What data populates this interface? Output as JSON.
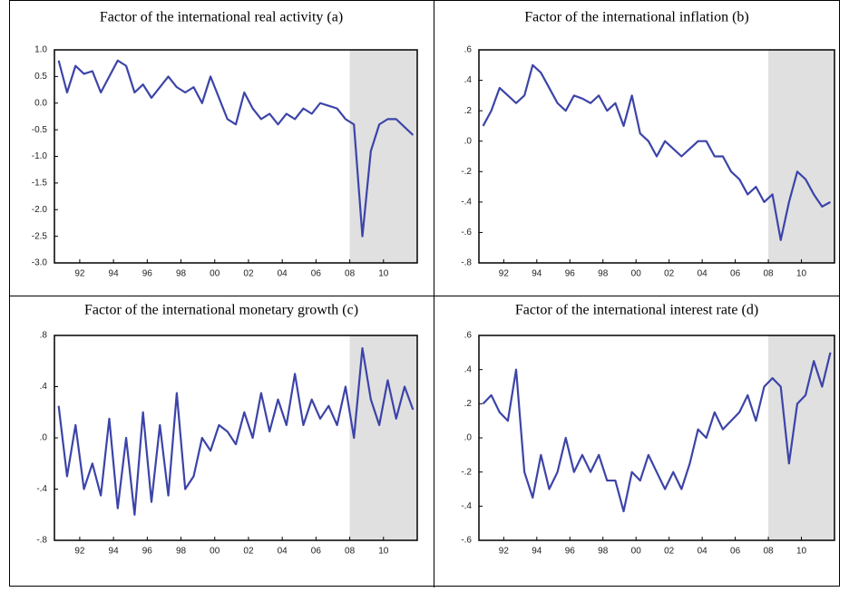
{
  "chart_data": [
    {
      "type": "line",
      "title": "Factor of the international real activity (a)",
      "x": [
        1990.75,
        1991.25,
        1991.75,
        1992.25,
        1992.75,
        1993.25,
        1993.75,
        1994.25,
        1994.75,
        1995.25,
        1995.75,
        1996.25,
        1996.75,
        1997.25,
        1997.75,
        1998.25,
        1998.75,
        1999.25,
        1999.75,
        2000.25,
        2000.75,
        2001.25,
        2001.75,
        2002.25,
        2002.75,
        2003.25,
        2003.75,
        2004.25,
        2004.75,
        2005.25,
        2005.75,
        2006.25,
        2006.75,
        2007.25,
        2007.75,
        2008.25,
        2008.75,
        2009.25,
        2009.75,
        2010.25,
        2010.75,
        2011.25,
        2011.75
      ],
      "values": [
        0.8,
        0.2,
        0.7,
        0.55,
        0.6,
        0.2,
        0.5,
        0.8,
        0.7,
        0.2,
        0.35,
        0.1,
        0.3,
        0.5,
        0.3,
        0.2,
        0.3,
        0.0,
        0.5,
        0.1,
        -0.3,
        -0.4,
        0.2,
        -0.1,
        -0.3,
        -0.2,
        -0.4,
        -0.2,
        -0.3,
        -0.1,
        -0.2,
        0.0,
        -0.05,
        -0.1,
        -0.3,
        -0.4,
        -2.5,
        -0.9,
        -0.4,
        -0.3,
        -0.3,
        -0.45,
        -0.6
      ],
      "color": "#3c44a8",
      "shade": [
        2008,
        2012
      ],
      "shade_color": "#e0e0e0",
      "xlim": [
        1990.5,
        2012
      ],
      "xticks": [
        {
          "value": 1992,
          "label": "92"
        },
        {
          "value": 1994,
          "label": "94"
        },
        {
          "value": 1996,
          "label": "96"
        },
        {
          "value": 1998,
          "label": "98"
        },
        {
          "value": 2000,
          "label": "00"
        },
        {
          "value": 2002,
          "label": "02"
        },
        {
          "value": 2004,
          "label": "04"
        },
        {
          "value": 2006,
          "label": "06"
        },
        {
          "value": 2008,
          "label": "08"
        },
        {
          "value": 2010,
          "label": "10"
        }
      ],
      "ylim": [
        -3,
        1
      ],
      "yticks": [
        {
          "value": 1,
          "label": "1.0"
        },
        0.5,
        {
          "value": 0,
          "label": "0.0"
        },
        -0.5,
        {
          "value": -1,
          "label": "-1.0"
        },
        -1.5,
        {
          "value": -2,
          "label": "-2.0"
        },
        -2.5,
        {
          "value": -3,
          "label": "-3.0"
        }
      ]
    },
    {
      "type": "line",
      "title": "Factor of the international inflation (b)",
      "x": [
        1990.75,
        1991.25,
        1991.75,
        1992.25,
        1992.75,
        1993.25,
        1993.75,
        1994.25,
        1994.75,
        1995.25,
        1995.75,
        1996.25,
        1996.75,
        1997.25,
        1997.75,
        1998.25,
        1998.75,
        1999.25,
        1999.75,
        2000.25,
        2000.75,
        2001.25,
        2001.75,
        2002.25,
        2002.75,
        2003.25,
        2003.75,
        2004.25,
        2004.75,
        2005.25,
        2005.75,
        2006.25,
        2006.75,
        2007.25,
        2007.75,
        2008.25,
        2008.75,
        2009.25,
        2009.75,
        2010.25,
        2010.75,
        2011.25,
        2011.75
      ],
      "values": [
        0.1,
        0.2,
        0.35,
        0.3,
        0.25,
        0.3,
        0.5,
        0.45,
        0.35,
        0.25,
        0.2,
        0.3,
        0.28,
        0.25,
        0.3,
        0.2,
        0.25,
        0.1,
        0.3,
        0.05,
        0.0,
        -0.1,
        0.0,
        -0.05,
        -0.1,
        -0.05,
        0.0,
        0.0,
        -0.1,
        -0.1,
        -0.2,
        -0.25,
        -0.35,
        -0.3,
        -0.4,
        -0.35,
        -0.65,
        -0.4,
        -0.2,
        -0.25,
        -0.35,
        -0.43,
        -0.4
      ],
      "color": "#3c44a8",
      "shade": [
        2008,
        2012
      ],
      "shade_color": "#e0e0e0",
      "xlim": [
        1990.5,
        2012
      ],
      "xticks": [
        {
          "value": 1992,
          "label": "92"
        },
        {
          "value": 1994,
          "label": "94"
        },
        {
          "value": 1996,
          "label": "96"
        },
        {
          "value": 1998,
          "label": "98"
        },
        {
          "value": 2000,
          "label": "00"
        },
        {
          "value": 2002,
          "label": "02"
        },
        {
          "value": 2004,
          "label": "04"
        },
        {
          "value": 2006,
          "label": "06"
        },
        {
          "value": 2008,
          "label": "08"
        },
        {
          "value": 2010,
          "label": "10"
        }
      ],
      "ylim": [
        -0.8,
        0.6
      ],
      "yticks": [
        {
          "value": 0.6,
          "label": ".6"
        },
        {
          "value": 0.4,
          "label": ".4"
        },
        {
          "value": 0.2,
          "label": ".2"
        },
        {
          "value": 0,
          "label": ".0"
        },
        {
          "value": -0.2,
          "label": "-.2"
        },
        {
          "value": -0.4,
          "label": "-.4"
        },
        {
          "value": -0.6,
          "label": "-.6"
        },
        {
          "value": -0.8,
          "label": "-.8"
        }
      ]
    },
    {
      "type": "line",
      "title": "Factor of the international monetary growth (c)",
      "x": [
        1990.75,
        1991.25,
        1991.75,
        1992.25,
        1992.75,
        1993.25,
        1993.75,
        1994.25,
        1994.75,
        1995.25,
        1995.75,
        1996.25,
        1996.75,
        1997.25,
        1997.75,
        1998.25,
        1998.75,
        1999.25,
        1999.75,
        2000.25,
        2000.75,
        2001.25,
        2001.75,
        2002.25,
        2002.75,
        2003.25,
        2003.75,
        2004.25,
        2004.75,
        2005.25,
        2005.75,
        2006.25,
        2006.75,
        2007.25,
        2007.75,
        2008.25,
        2008.75,
        2009.25,
        2009.75,
        2010.25,
        2010.75,
        2011.25,
        2011.75
      ],
      "values": [
        0.25,
        -0.3,
        0.1,
        -0.4,
        -0.2,
        -0.45,
        0.15,
        -0.55,
        0.0,
        -0.6,
        0.2,
        -0.5,
        0.1,
        -0.45,
        0.35,
        -0.4,
        -0.3,
        0.0,
        -0.1,
        0.1,
        0.05,
        -0.05,
        0.2,
        0.0,
        0.35,
        0.05,
        0.3,
        0.1,
        0.5,
        0.1,
        0.3,
        0.15,
        0.25,
        0.1,
        0.4,
        0.0,
        0.7,
        0.3,
        0.1,
        0.45,
        0.15,
        0.4,
        0.22
      ],
      "color": "#3c44a8",
      "shade": [
        2008,
        2012
      ],
      "shade_color": "#e0e0e0",
      "xlim": [
        1990.5,
        2012
      ],
      "xticks": [
        {
          "value": 1992,
          "label": "92"
        },
        {
          "value": 1994,
          "label": "94"
        },
        {
          "value": 1996,
          "label": "96"
        },
        {
          "value": 1998,
          "label": "98"
        },
        {
          "value": 2000,
          "label": "00"
        },
        {
          "value": 2002,
          "label": "02"
        },
        {
          "value": 2004,
          "label": "04"
        },
        {
          "value": 2006,
          "label": "06"
        },
        {
          "value": 2008,
          "label": "08"
        },
        {
          "value": 2010,
          "label": "10"
        }
      ],
      "ylim": [
        -0.8,
        0.8
      ],
      "yticks": [
        {
          "value": 0.8,
          "label": ".8"
        },
        {
          "value": 0.4,
          "label": ".4"
        },
        {
          "value": 0,
          "label": ".0"
        },
        {
          "value": -0.4,
          "label": "-.4"
        },
        {
          "value": -0.8,
          "label": "-.8"
        }
      ]
    },
    {
      "type": "line",
      "title": "Factor of the international interest rate (d)",
      "x": [
        1990.75,
        1991.25,
        1991.75,
        1992.25,
        1992.75,
        1993.25,
        1993.75,
        1994.25,
        1994.75,
        1995.25,
        1995.75,
        1996.25,
        1996.75,
        1997.25,
        1997.75,
        1998.25,
        1998.75,
        1999.25,
        1999.75,
        2000.25,
        2000.75,
        2001.25,
        2001.75,
        2002.25,
        2002.75,
        2003.25,
        2003.75,
        2004.25,
        2004.75,
        2005.25,
        2005.75,
        2006.25,
        2006.75,
        2007.25,
        2007.75,
        2008.25,
        2008.75,
        2009.25,
        2009.75,
        2010.25,
        2010.75,
        2011.25,
        2011.75
      ],
      "values": [
        0.2,
        0.25,
        0.15,
        0.1,
        0.4,
        -0.2,
        -0.35,
        -0.1,
        -0.3,
        -0.2,
        0.0,
        -0.2,
        -0.1,
        -0.2,
        -0.1,
        -0.25,
        -0.25,
        -0.43,
        -0.2,
        -0.25,
        -0.1,
        -0.2,
        -0.3,
        -0.2,
        -0.3,
        -0.15,
        0.05,
        0.0,
        0.15,
        0.05,
        0.1,
        0.15,
        0.25,
        0.1,
        0.3,
        0.35,
        0.3,
        -0.15,
        0.2,
        0.25,
        0.45,
        0.3,
        0.5
      ],
      "color": "#3c44a8",
      "shade": [
        2008,
        2012
      ],
      "shade_color": "#e0e0e0",
      "xlim": [
        1990.5,
        2012
      ],
      "xticks": [
        {
          "value": 1992,
          "label": "92"
        },
        {
          "value": 1994,
          "label": "94"
        },
        {
          "value": 1996,
          "label": "96"
        },
        {
          "value": 1998,
          "label": "98"
        },
        {
          "value": 2000,
          "label": "00"
        },
        {
          "value": 2002,
          "label": "02"
        },
        {
          "value": 2004,
          "label": "04"
        },
        {
          "value": 2006,
          "label": "06"
        },
        {
          "value": 2008,
          "label": "08"
        },
        {
          "value": 2010,
          "label": "10"
        }
      ],
      "ylim": [
        -0.6,
        0.6
      ],
      "yticks": [
        {
          "value": 0.6,
          "label": ".6"
        },
        {
          "value": 0.4,
          "label": ".4"
        },
        {
          "value": 0.2,
          "label": ".2"
        },
        {
          "value": 0,
          "label": ".0"
        },
        {
          "value": -0.2,
          "label": "-.2"
        },
        {
          "value": -0.4,
          "label": "-.4"
        },
        {
          "value": -0.6,
          "label": "-.6"
        }
      ]
    }
  ]
}
